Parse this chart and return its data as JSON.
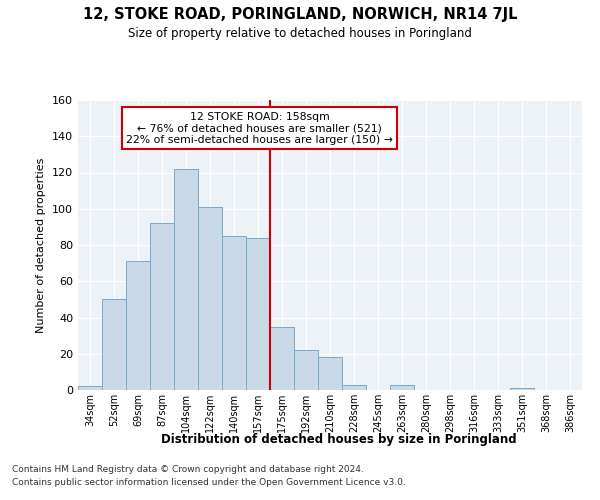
{
  "title": "12, STOKE ROAD, PORINGLAND, NORWICH, NR14 7JL",
  "subtitle": "Size of property relative to detached houses in Poringland",
  "xlabel": "Distribution of detached houses by size in Poringland",
  "ylabel": "Number of detached properties",
  "bar_labels": [
    "34sqm",
    "52sqm",
    "69sqm",
    "87sqm",
    "104sqm",
    "122sqm",
    "140sqm",
    "157sqm",
    "175sqm",
    "192sqm",
    "210sqm",
    "228sqm",
    "245sqm",
    "263sqm",
    "280sqm",
    "298sqm",
    "316sqm",
    "333sqm",
    "351sqm",
    "368sqm",
    "386sqm"
  ],
  "bar_values": [
    2,
    50,
    71,
    92,
    122,
    101,
    85,
    84,
    35,
    22,
    18,
    3,
    0,
    3,
    0,
    0,
    0,
    0,
    1,
    0,
    0
  ],
  "bar_color": "#c9d9e8",
  "bar_edge_color": "#7aaac8",
  "vline_color": "#cc0000",
  "annotation_box_color": "#ffffff",
  "annotation_box_edge": "#cc0000",
  "ylim": [
    0,
    160
  ],
  "yticks": [
    0,
    20,
    40,
    60,
    80,
    100,
    120,
    140,
    160
  ],
  "bg_color": "#edf2f7",
  "footnote1": "Contains HM Land Registry data © Crown copyright and database right 2024.",
  "footnote2": "Contains public sector information licensed under the Open Government Licence v3.0."
}
